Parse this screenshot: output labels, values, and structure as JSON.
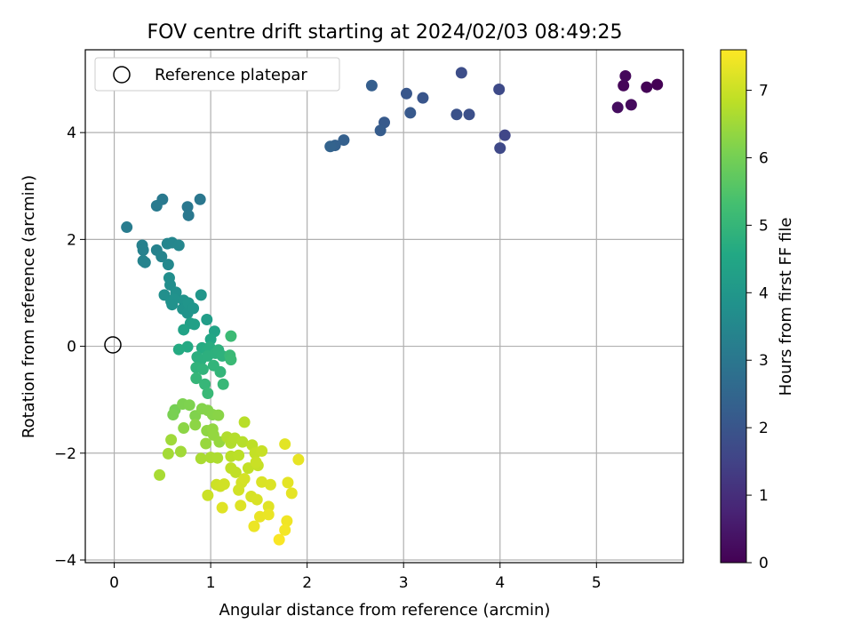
{
  "chart_data": {
    "type": "scatter",
    "title": "FOV centre drift starting at 2024/02/03 08:49:25",
    "xlabel": "Angular distance from reference (arcmin)",
    "ylabel": "Rotation from reference (arcmin)",
    "xlim": [
      -0.3,
      5.9
    ],
    "ylim": [
      -4.05,
      5.55
    ],
    "xticks": [
      "0",
      "1",
      "2",
      "3",
      "4",
      "5"
    ],
    "yticks": [
      "−4",
      "−2",
      "0",
      "2",
      "4"
    ],
    "grid": true,
    "legend": {
      "location": "upper-left",
      "entries": [
        "Reference platepar"
      ]
    },
    "reference_point": {
      "x": 0,
      "y": 0
    },
    "colorbar": {
      "label": "Hours from first FF file",
      "colormap": "viridis",
      "range": [
        0,
        7.6
      ],
      "ticks": [
        "0",
        "1",
        "2",
        "3",
        "4",
        "5",
        "6",
        "7"
      ]
    },
    "points": [
      {
        "x": 5.63,
        "y": 4.9,
        "t": 0.0
      },
      {
        "x": 5.52,
        "y": 4.85,
        "t": 0.05
      },
      {
        "x": 5.28,
        "y": 4.88,
        "t": 0.1
      },
      {
        "x": 5.3,
        "y": 5.06,
        "t": 0.15
      },
      {
        "x": 5.36,
        "y": 4.52,
        "t": 0.2
      },
      {
        "x": 5.22,
        "y": 4.47,
        "t": 0.25
      },
      {
        "x": 4.05,
        "y": 3.95,
        "t": 1.6
      },
      {
        "x": 4.0,
        "y": 3.71,
        "t": 1.65
      },
      {
        "x": 3.99,
        "y": 4.81,
        "t": 1.7
      },
      {
        "x": 3.6,
        "y": 5.12,
        "t": 1.8
      },
      {
        "x": 3.68,
        "y": 4.34,
        "t": 1.85
      },
      {
        "x": 3.55,
        "y": 4.34,
        "t": 1.9
      },
      {
        "x": 3.2,
        "y": 4.65,
        "t": 2.0
      },
      {
        "x": 3.03,
        "y": 4.73,
        "t": 2.05
      },
      {
        "x": 3.07,
        "y": 4.37,
        "t": 2.1
      },
      {
        "x": 2.8,
        "y": 4.19,
        "t": 2.15
      },
      {
        "x": 2.76,
        "y": 4.04,
        "t": 2.2
      },
      {
        "x": 2.67,
        "y": 4.88,
        "t": 2.25
      },
      {
        "x": 2.38,
        "y": 3.86,
        "t": 2.3
      },
      {
        "x": 2.29,
        "y": 3.76,
        "t": 2.35
      },
      {
        "x": 2.24,
        "y": 3.74,
        "t": 2.4
      },
      {
        "x": 0.89,
        "y": 2.75,
        "t": 3.0
      },
      {
        "x": 0.76,
        "y": 2.61,
        "t": 3.02
      },
      {
        "x": 0.77,
        "y": 2.45,
        "t": 3.05
      },
      {
        "x": 0.5,
        "y": 2.75,
        "t": 3.08
      },
      {
        "x": 0.44,
        "y": 2.63,
        "t": 3.1
      },
      {
        "x": 0.13,
        "y": 2.23,
        "t": 3.15
      },
      {
        "x": 0.29,
        "y": 1.89,
        "t": 3.3
      },
      {
        "x": 0.3,
        "y": 1.8,
        "t": 3.32
      },
      {
        "x": 0.44,
        "y": 1.8,
        "t": 3.34
      },
      {
        "x": 0.3,
        "y": 1.6,
        "t": 3.36
      },
      {
        "x": 0.32,
        "y": 1.57,
        "t": 3.38
      },
      {
        "x": 0.49,
        "y": 1.68,
        "t": 3.4
      },
      {
        "x": 0.55,
        "y": 1.92,
        "t": 3.45
      },
      {
        "x": 0.6,
        "y": 1.94,
        "t": 3.47
      },
      {
        "x": 0.67,
        "y": 1.89,
        "t": 3.5
      },
      {
        "x": 0.56,
        "y": 1.53,
        "t": 3.52
      },
      {
        "x": 0.57,
        "y": 1.28,
        "t": 3.7
      },
      {
        "x": 0.58,
        "y": 1.15,
        "t": 3.72
      },
      {
        "x": 0.52,
        "y": 0.96,
        "t": 3.74
      },
      {
        "x": 0.64,
        "y": 1.01,
        "t": 3.76
      },
      {
        "x": 0.59,
        "y": 0.84,
        "t": 3.8
      },
      {
        "x": 0.62,
        "y": 0.88,
        "t": 3.82
      },
      {
        "x": 0.6,
        "y": 0.78,
        "t": 3.84
      },
      {
        "x": 0.72,
        "y": 0.86,
        "t": 3.86
      },
      {
        "x": 0.71,
        "y": 0.7,
        "t": 3.88
      },
      {
        "x": 0.76,
        "y": 0.62,
        "t": 3.9
      },
      {
        "x": 0.77,
        "y": 0.81,
        "t": 3.92
      },
      {
        "x": 0.82,
        "y": 0.71,
        "t": 3.94
      },
      {
        "x": 0.9,
        "y": 0.96,
        "t": 3.96
      },
      {
        "x": 0.96,
        "y": 0.5,
        "t": 4.2
      },
      {
        "x": 0.79,
        "y": 0.43,
        "t": 4.25
      },
      {
        "x": 0.83,
        "y": 0.41,
        "t": 4.3
      },
      {
        "x": 0.72,
        "y": 0.31,
        "t": 4.35
      },
      {
        "x": 1.04,
        "y": 0.28,
        "t": 4.4
      },
      {
        "x": 1.0,
        "y": 0.13,
        "t": 4.5
      },
      {
        "x": 0.76,
        "y": -0.01,
        "t": 4.6
      },
      {
        "x": 0.67,
        "y": -0.06,
        "t": 4.62
      },
      {
        "x": 0.91,
        "y": -0.03,
        "t": 4.65
      },
      {
        "x": 0.96,
        "y": -0.07,
        "t": 4.68
      },
      {
        "x": 0.99,
        "y": -0.02,
        "t": 4.7
      },
      {
        "x": 0.86,
        "y": -0.2,
        "t": 4.75
      },
      {
        "x": 0.9,
        "y": -0.25,
        "t": 4.78
      },
      {
        "x": 0.97,
        "y": -0.18,
        "t": 4.8
      },
      {
        "x": 1.05,
        "y": -0.13,
        "t": 4.82
      },
      {
        "x": 1.08,
        "y": -0.07,
        "t": 4.84
      },
      {
        "x": 1.12,
        "y": -0.18,
        "t": 4.86
      },
      {
        "x": 0.85,
        "y": -0.4,
        "t": 4.9
      },
      {
        "x": 0.92,
        "y": -0.43,
        "t": 4.92
      },
      {
        "x": 1.03,
        "y": -0.36,
        "t": 4.94
      },
      {
        "x": 1.1,
        "y": -0.48,
        "t": 4.96
      },
      {
        "x": 0.85,
        "y": -0.6,
        "t": 5.0
      },
      {
        "x": 0.94,
        "y": -0.71,
        "t": 5.02
      },
      {
        "x": 1.13,
        "y": -0.71,
        "t": 5.05
      },
      {
        "x": 0.97,
        "y": -0.88,
        "t": 5.08
      },
      {
        "x": 1.2,
        "y": -0.17,
        "t": 5.1
      },
      {
        "x": 1.21,
        "y": -0.25,
        "t": 5.12
      },
      {
        "x": 1.21,
        "y": 0.19,
        "t": 5.15
      },
      {
        "x": 0.63,
        "y": -1.19,
        "t": 6.0
      },
      {
        "x": 0.61,
        "y": -1.28,
        "t": 6.05
      },
      {
        "x": 0.71,
        "y": -1.08,
        "t": 6.1
      },
      {
        "x": 0.78,
        "y": -1.1,
        "t": 6.12
      },
      {
        "x": 0.84,
        "y": -1.3,
        "t": 6.15
      },
      {
        "x": 0.91,
        "y": -1.17,
        "t": 6.18
      },
      {
        "x": 0.97,
        "y": -1.2,
        "t": 6.2
      },
      {
        "x": 1.02,
        "y": -1.28,
        "t": 6.22
      },
      {
        "x": 1.08,
        "y": -1.29,
        "t": 6.25
      },
      {
        "x": 0.72,
        "y": -1.53,
        "t": 6.28
      },
      {
        "x": 0.84,
        "y": -1.47,
        "t": 6.3
      },
      {
        "x": 0.96,
        "y": -1.58,
        "t": 6.32
      },
      {
        "x": 1.02,
        "y": -1.55,
        "t": 6.35
      },
      {
        "x": 1.03,
        "y": -1.66,
        "t": 6.38
      },
      {
        "x": 1.09,
        "y": -1.79,
        "t": 6.4
      },
      {
        "x": 0.95,
        "y": -1.82,
        "t": 6.42
      },
      {
        "x": 0.59,
        "y": -1.75,
        "t": 6.5
      },
      {
        "x": 0.69,
        "y": -1.97,
        "t": 6.52
      },
      {
        "x": 0.56,
        "y": -2.01,
        "t": 6.55
      },
      {
        "x": 0.47,
        "y": -2.41,
        "t": 6.6
      },
      {
        "x": 0.9,
        "y": -2.1,
        "t": 6.62
      },
      {
        "x": 1.0,
        "y": -2.08,
        "t": 6.64
      },
      {
        "x": 1.07,
        "y": -2.09,
        "t": 6.66
      },
      {
        "x": 1.17,
        "y": -1.7,
        "t": 6.7
      },
      {
        "x": 1.21,
        "y": -1.81,
        "t": 6.72
      },
      {
        "x": 1.25,
        "y": -1.72,
        "t": 6.74
      },
      {
        "x": 1.33,
        "y": -1.79,
        "t": 6.76
      },
      {
        "x": 1.35,
        "y": -1.42,
        "t": 6.78
      },
      {
        "x": 1.21,
        "y": -2.06,
        "t": 6.8
      },
      {
        "x": 1.29,
        "y": -2.04,
        "t": 6.82
      },
      {
        "x": 1.43,
        "y": -1.85,
        "t": 6.84
      },
      {
        "x": 1.21,
        "y": -2.28,
        "t": 6.86
      },
      {
        "x": 1.26,
        "y": -2.36,
        "t": 6.88
      },
      {
        "x": 1.39,
        "y": -2.28,
        "t": 6.9
      },
      {
        "x": 1.46,
        "y": -2.0,
        "t": 6.92
      },
      {
        "x": 1.49,
        "y": -2.23,
        "t": 6.94
      },
      {
        "x": 1.53,
        "y": -1.96,
        "t": 6.96
      },
      {
        "x": 1.47,
        "y": -2.17,
        "t": 6.98
      },
      {
        "x": 0.97,
        "y": -2.79,
        "t": 7.0
      },
      {
        "x": 1.06,
        "y": -2.59,
        "t": 7.02
      },
      {
        "x": 1.1,
        "y": -2.62,
        "t": 7.04
      },
      {
        "x": 1.14,
        "y": -2.58,
        "t": 7.06
      },
      {
        "x": 1.29,
        "y": -2.69,
        "t": 7.08
      },
      {
        "x": 1.32,
        "y": -2.55,
        "t": 7.1
      },
      {
        "x": 1.35,
        "y": -2.48,
        "t": 7.12
      },
      {
        "x": 1.42,
        "y": -2.81,
        "t": 7.14
      },
      {
        "x": 1.48,
        "y": -2.87,
        "t": 7.16
      },
      {
        "x": 1.53,
        "y": -2.54,
        "t": 7.18
      },
      {
        "x": 1.62,
        "y": -2.59,
        "t": 7.2
      },
      {
        "x": 1.31,
        "y": -2.98,
        "t": 7.22
      },
      {
        "x": 1.12,
        "y": -3.02,
        "t": 7.24
      },
      {
        "x": 1.6,
        "y": -3.0,
        "t": 7.26
      },
      {
        "x": 1.77,
        "y": -1.83,
        "t": 7.28
      },
      {
        "x": 1.8,
        "y": -2.55,
        "t": 7.3
      },
      {
        "x": 1.84,
        "y": -2.75,
        "t": 7.32
      },
      {
        "x": 1.91,
        "y": -2.12,
        "t": 7.34
      },
      {
        "x": 1.51,
        "y": -3.19,
        "t": 7.36
      },
      {
        "x": 1.6,
        "y": -3.15,
        "t": 7.38
      },
      {
        "x": 1.45,
        "y": -3.37,
        "t": 7.4
      },
      {
        "x": 1.79,
        "y": -3.27,
        "t": 7.44
      },
      {
        "x": 1.77,
        "y": -3.44,
        "t": 7.48
      },
      {
        "x": 1.71,
        "y": -3.62,
        "t": 7.55
      }
    ]
  }
}
